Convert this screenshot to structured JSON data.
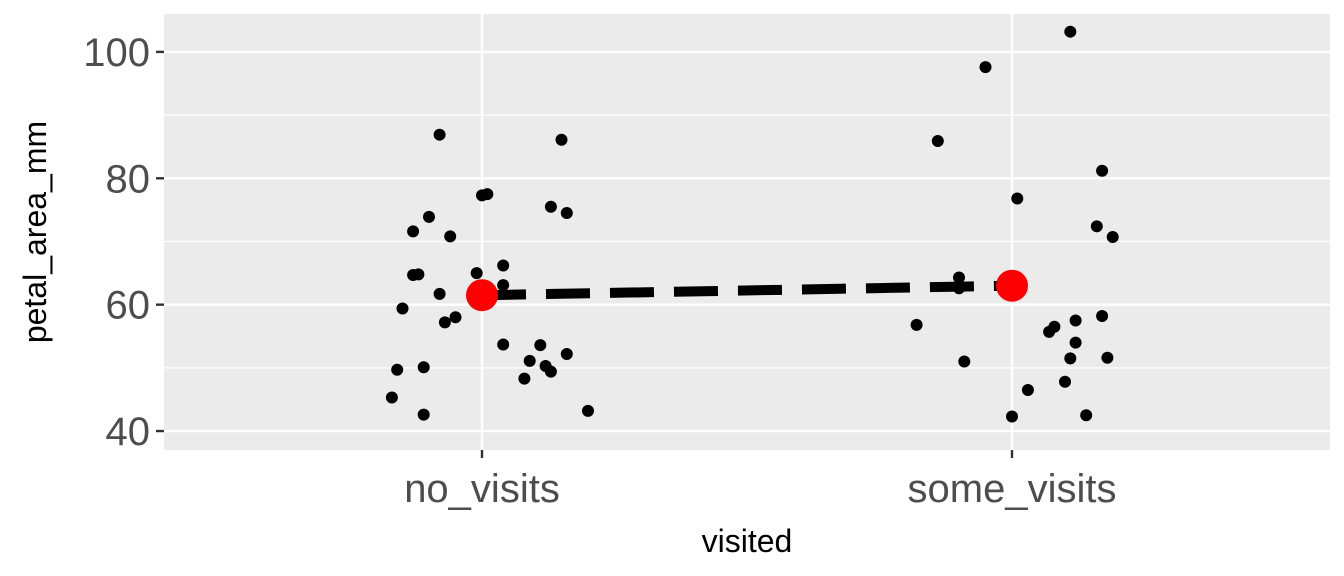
{
  "chart_data": {
    "type": "scatter",
    "xlabel": "visited",
    "ylabel": "petal_area_mm",
    "categories": [
      "no_visits",
      "some_visits"
    ],
    "ylim": [
      37,
      106
    ],
    "y_ticks": [
      40,
      60,
      80,
      100
    ],
    "grid": true,
    "series": [
      {
        "category": "no_visits",
        "points": [
          {
            "x": -0.17,
            "y": 45.3
          },
          {
            "x": -0.16,
            "y": 49.7
          },
          {
            "x": -0.15,
            "y": 59.4
          },
          {
            "x": -0.13,
            "y": 71.6
          },
          {
            "x": -0.13,
            "y": 64.7
          },
          {
            "x": -0.12,
            "y": 64.8
          },
          {
            "x": -0.11,
            "y": 50.1
          },
          {
            "x": -0.11,
            "y": 42.6
          },
          {
            "x": -0.1,
            "y": 73.9
          },
          {
            "x": -0.08,
            "y": 61.7
          },
          {
            "x": -0.08,
            "y": 86.9
          },
          {
            "x": -0.07,
            "y": 57.2
          },
          {
            "x": -0.06,
            "y": 70.8
          },
          {
            "x": -0.05,
            "y": 58.0
          },
          {
            "x": -0.01,
            "y": 65.0
          },
          {
            "x": 0.0,
            "y": 77.3
          },
          {
            "x": 0.01,
            "y": 77.5
          },
          {
            "x": 0.04,
            "y": 66.2
          },
          {
            "x": 0.04,
            "y": 63.1
          },
          {
            "x": 0.04,
            "y": 53.7
          },
          {
            "x": 0.08,
            "y": 48.3
          },
          {
            "x": 0.09,
            "y": 51.1
          },
          {
            "x": 0.11,
            "y": 53.6
          },
          {
            "x": 0.12,
            "y": 50.3
          },
          {
            "x": 0.13,
            "y": 75.5
          },
          {
            "x": 0.13,
            "y": 49.4
          },
          {
            "x": 0.15,
            "y": 86.1
          },
          {
            "x": 0.16,
            "y": 74.5
          },
          {
            "x": 0.16,
            "y": 52.2
          },
          {
            "x": 0.2,
            "y": 43.2
          }
        ]
      },
      {
        "category": "some_visits",
        "points": [
          {
            "x": -0.18,
            "y": 56.8
          },
          {
            "x": -0.14,
            "y": 85.9
          },
          {
            "x": -0.1,
            "y": 64.3
          },
          {
            "x": -0.1,
            "y": 62.6
          },
          {
            "x": -0.09,
            "y": 51.0
          },
          {
            "x": -0.05,
            "y": 97.6
          },
          {
            "x": 0.0,
            "y": 42.3
          },
          {
            "x": 0.01,
            "y": 76.8
          },
          {
            "x": 0.03,
            "y": 46.5
          },
          {
            "x": 0.07,
            "y": 55.7
          },
          {
            "x": 0.08,
            "y": 56.5
          },
          {
            "x": 0.1,
            "y": 47.8
          },
          {
            "x": 0.11,
            "y": 103.2
          },
          {
            "x": 0.11,
            "y": 51.5
          },
          {
            "x": 0.12,
            "y": 57.5
          },
          {
            "x": 0.12,
            "y": 54.0
          },
          {
            "x": 0.14,
            "y": 42.5
          },
          {
            "x": 0.16,
            "y": 72.4
          },
          {
            "x": 0.17,
            "y": 81.2
          },
          {
            "x": 0.17,
            "y": 58.2
          },
          {
            "x": 0.18,
            "y": 51.6
          },
          {
            "x": 0.19,
            "y": 70.7
          }
        ]
      }
    ],
    "means": [
      {
        "category": "no_visits",
        "y": 61.5
      },
      {
        "category": "some_visits",
        "y": 63.0
      }
    ],
    "colors": {
      "panel": "#ebebeb",
      "grid": "#ffffff",
      "points": "#000000",
      "mean": "#ff0000",
      "line": "#000000"
    }
  }
}
